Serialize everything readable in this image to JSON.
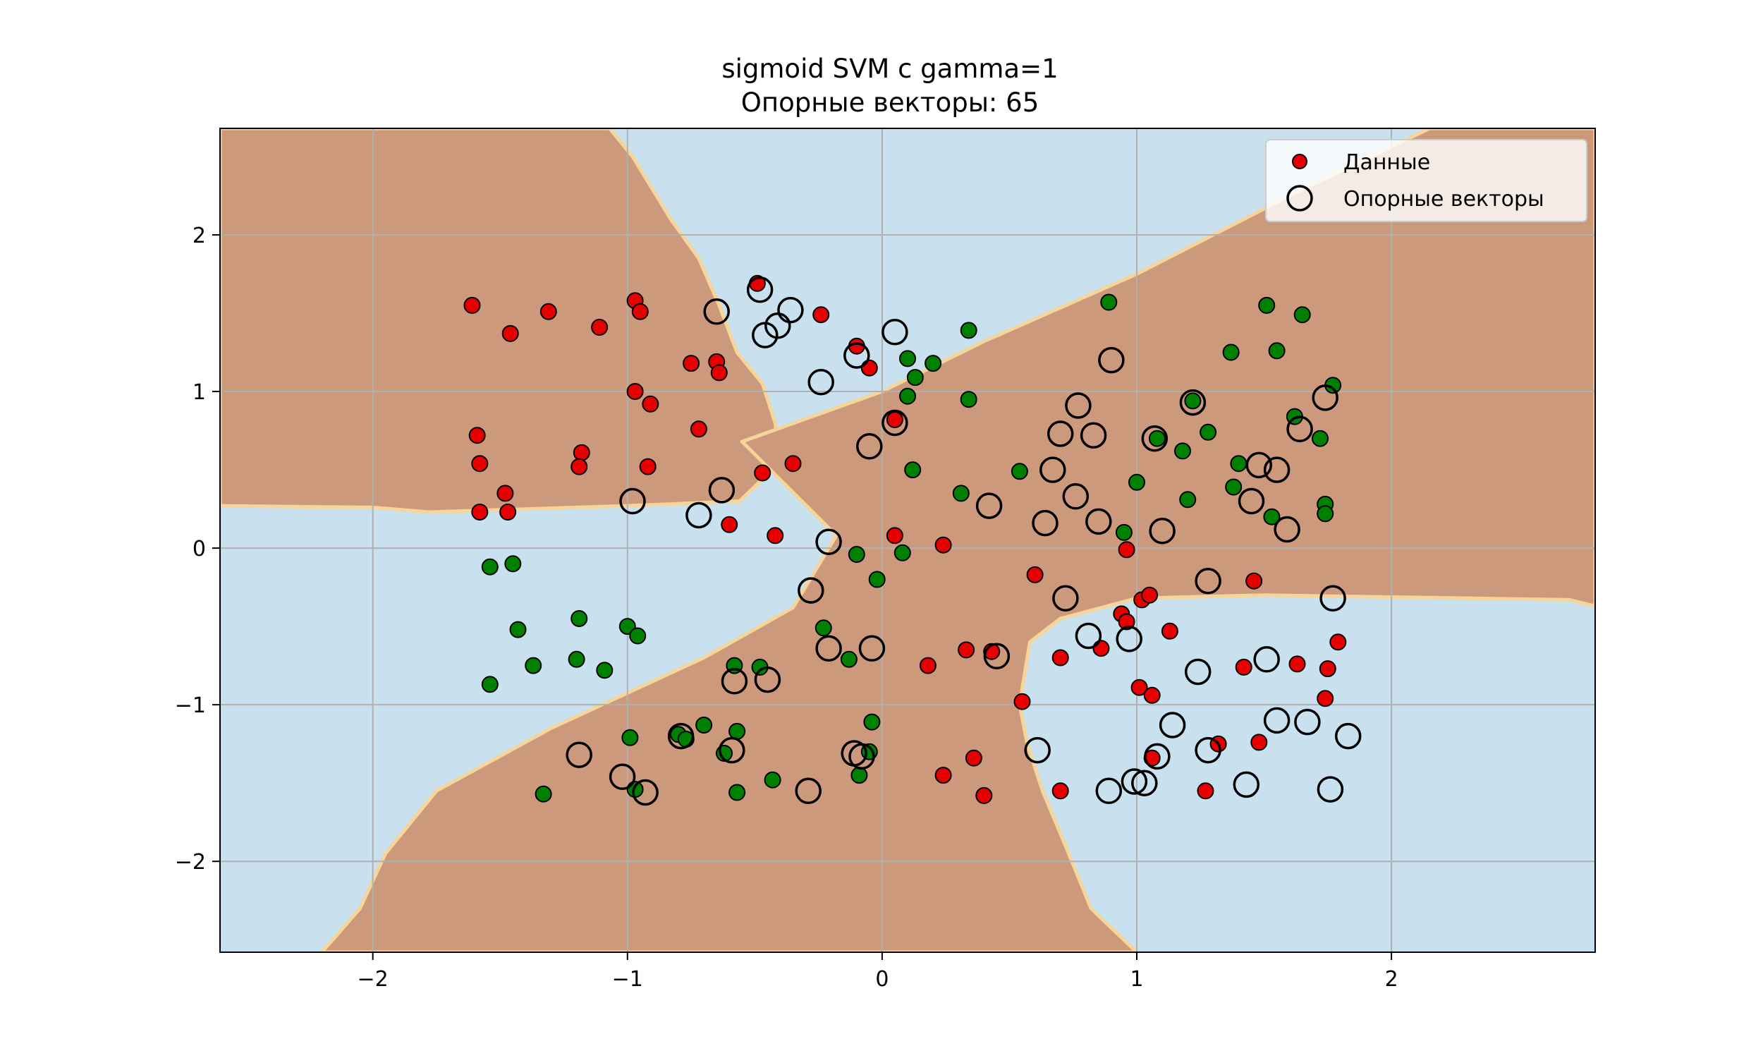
{
  "chart_data": {
    "type": "scatter",
    "title": "sigmoid SVM с gamma=1",
    "subtitle": "Опорные векторы: 65",
    "xlabel": "",
    "ylabel": "",
    "xlim": [
      -2.6,
      2.8
    ],
    "ylim": [
      -2.58,
      2.68
    ],
    "xticks": [
      -2,
      -1,
      0,
      1,
      2
    ],
    "xtick_labels": [
      "−2",
      "−1",
      "0",
      "1",
      "2"
    ],
    "yticks": [
      -2,
      -1,
      0,
      1,
      2
    ],
    "ytick_labels": [
      "−2",
      "−1",
      "0",
      "1",
      "2"
    ],
    "grid": true,
    "legend": {
      "placement": "top-right",
      "entries": [
        {
          "label": "Данные",
          "marker": "filled-circle"
        },
        {
          "label": "Опорные векторы",
          "marker": "open-circle"
        }
      ]
    },
    "decision_regions": {
      "colors": {
        "class_a": "#cd997c",
        "class_b": "#c9e0ee",
        "boundary": "#f5d59a"
      },
      "class_a_polygons": [
        [
          [
            -2.6,
            2.68
          ],
          [
            -1.07,
            2.68
          ],
          [
            -0.98,
            2.5
          ],
          [
            -0.83,
            2.1
          ],
          [
            -0.72,
            1.85
          ],
          [
            -0.64,
            1.55
          ],
          [
            -0.57,
            1.25
          ],
          [
            -0.47,
            1.05
          ],
          [
            -0.42,
            0.8
          ],
          [
            -0.4,
            0.55
          ],
          [
            -0.56,
            0.3
          ],
          [
            -1.0,
            0.27
          ],
          [
            -1.78,
            0.23
          ],
          [
            -2.0,
            0.26
          ],
          [
            -2.6,
            0.27
          ]
        ],
        [
          [
            -2.2,
            -2.58
          ],
          [
            1.0,
            -2.58
          ],
          [
            0.82,
            -2.3
          ],
          [
            0.72,
            -1.9
          ],
          [
            0.63,
            -1.55
          ],
          [
            0.57,
            -1.25
          ],
          [
            0.54,
            -1.0
          ],
          [
            0.58,
            -0.6
          ],
          [
            0.7,
            -0.45
          ],
          [
            1.0,
            -0.32
          ],
          [
            1.5,
            -0.3
          ],
          [
            2.7,
            -0.33
          ],
          [
            2.8,
            -0.37
          ],
          [
            2.8,
            2.68
          ],
          [
            2.15,
            2.68
          ],
          [
            1.6,
            2.25
          ],
          [
            1.0,
            1.75
          ],
          [
            0.4,
            1.32
          ],
          [
            0.0,
            1.0
          ],
          [
            -0.55,
            0.68
          ],
          [
            -0.18,
            0.08
          ],
          [
            -0.35,
            -0.38
          ],
          [
            -0.7,
            -0.7
          ],
          [
            -1.3,
            -1.15
          ],
          [
            -1.75,
            -1.55
          ],
          [
            -1.95,
            -1.95
          ],
          [
            -2.05,
            -2.3
          ]
        ]
      ]
    },
    "series": [
      {
        "label": "Данные",
        "marker": "filled",
        "points": [
          [
            -1.61,
            1.55,
            "#e60000"
          ],
          [
            -1.46,
            1.37,
            "#e60000"
          ],
          [
            -1.31,
            1.51,
            "#e60000"
          ],
          [
            -1.11,
            1.41,
            "#e60000"
          ],
          [
            -0.97,
            1.58,
            "#e60000"
          ],
          [
            -0.95,
            1.51,
            "#e60000"
          ],
          [
            -0.97,
            1.0,
            "#e60000"
          ],
          [
            -0.91,
            0.92,
            "#e60000"
          ],
          [
            -0.75,
            1.18,
            "#e60000"
          ],
          [
            -0.65,
            1.19,
            "#e60000"
          ],
          [
            -0.64,
            1.12,
            "#e60000"
          ],
          [
            -0.72,
            0.76,
            "#e60000"
          ],
          [
            -1.59,
            0.72,
            "#e60000"
          ],
          [
            -1.58,
            0.54,
            "#e60000"
          ],
          [
            -1.18,
            0.61,
            "#e60000"
          ],
          [
            -1.19,
            0.52,
            "#e60000"
          ],
          [
            -0.92,
            0.52,
            "#e60000"
          ],
          [
            -1.48,
            0.35,
            "#e60000"
          ],
          [
            -1.58,
            0.23,
            "#e60000"
          ],
          [
            -1.47,
            0.23,
            "#e60000"
          ],
          [
            -0.6,
            0.15,
            "#e60000"
          ],
          [
            -0.47,
            0.48,
            "#e60000"
          ],
          [
            -0.35,
            0.54,
            "#e60000"
          ],
          [
            -0.42,
            0.08,
            "#e60000"
          ],
          [
            -0.49,
            1.69,
            "#e60000"
          ],
          [
            -0.24,
            1.49,
            "#e60000"
          ],
          [
            -0.1,
            1.29,
            "#e60000"
          ],
          [
            -0.05,
            1.15,
            "#e60000"
          ],
          [
            0.05,
            0.82,
            "#e60000"
          ],
          [
            0.05,
            0.08,
            "#e60000"
          ],
          [
            0.24,
            0.02,
            "#e60000"
          ],
          [
            0.6,
            -0.17,
            "#e60000"
          ],
          [
            0.96,
            -0.01,
            "#e60000"
          ],
          [
            0.94,
            -0.42,
            "#e60000"
          ],
          [
            0.96,
            -0.47,
            "#e60000"
          ],
          [
            1.02,
            -0.33,
            "#e60000"
          ],
          [
            1.05,
            -0.3,
            "#e60000"
          ],
          [
            1.13,
            -0.53,
            "#e60000"
          ],
          [
            1.46,
            -0.21,
            "#e60000"
          ],
          [
            0.18,
            -0.75,
            "#e60000"
          ],
          [
            0.33,
            -0.65,
            "#e60000"
          ],
          [
            0.43,
            -0.66,
            "#e60000"
          ],
          [
            0.7,
            -0.7,
            "#e60000"
          ],
          [
            0.86,
            -0.64,
            "#e60000"
          ],
          [
            0.55,
            -0.98,
            "#e60000"
          ],
          [
            1.01,
            -0.89,
            "#e60000"
          ],
          [
            1.06,
            -0.94,
            "#e60000"
          ],
          [
            1.42,
            -0.76,
            "#e60000"
          ],
          [
            1.63,
            -0.74,
            "#e60000"
          ],
          [
            1.75,
            -0.77,
            "#e60000"
          ],
          [
            1.79,
            -0.6,
            "#e60000"
          ],
          [
            1.74,
            -0.96,
            "#e60000"
          ],
          [
            1.32,
            -1.25,
            "#e60000"
          ],
          [
            1.48,
            -1.24,
            "#e60000"
          ],
          [
            1.06,
            -1.34,
            "#e60000"
          ],
          [
            0.36,
            -1.34,
            "#e60000"
          ],
          [
            0.24,
            -1.45,
            "#e60000"
          ],
          [
            0.4,
            -1.58,
            "#e60000"
          ],
          [
            0.7,
            -1.55,
            "#e60000"
          ],
          [
            1.27,
            -1.55,
            "#e60000"
          ],
          [
            -1.54,
            -0.12,
            "#008000"
          ],
          [
            -1.45,
            -0.1,
            "#008000"
          ],
          [
            -1.43,
            -0.52,
            "#008000"
          ],
          [
            -1.37,
            -0.75,
            "#008000"
          ],
          [
            -1.19,
            -0.45,
            "#008000"
          ],
          [
            -1.2,
            -0.71,
            "#008000"
          ],
          [
            -1.09,
            -0.78,
            "#008000"
          ],
          [
            -1.0,
            -0.5,
            "#008000"
          ],
          [
            -0.96,
            -0.56,
            "#008000"
          ],
          [
            -1.54,
            -0.87,
            "#008000"
          ],
          [
            -0.99,
            -1.21,
            "#008000"
          ],
          [
            -0.97,
            -1.54,
            "#008000"
          ],
          [
            -1.33,
            -1.57,
            "#008000"
          ],
          [
            -0.8,
            -1.19,
            "#008000"
          ],
          [
            -0.7,
            -1.13,
            "#008000"
          ],
          [
            -0.77,
            -1.22,
            "#008000"
          ],
          [
            -0.62,
            -1.31,
            "#008000"
          ],
          [
            -0.57,
            -1.17,
            "#008000"
          ],
          [
            -0.58,
            -0.75,
            "#008000"
          ],
          [
            -0.48,
            -0.76,
            "#008000"
          ],
          [
            -0.57,
            -1.56,
            "#008000"
          ],
          [
            -0.43,
            -1.48,
            "#008000"
          ],
          [
            -0.23,
            -0.51,
            "#008000"
          ],
          [
            -0.13,
            -0.71,
            "#008000"
          ],
          [
            -0.1,
            -0.04,
            "#008000"
          ],
          [
            -0.02,
            -0.2,
            "#008000"
          ],
          [
            0.08,
            -0.03,
            "#008000"
          ],
          [
            -0.04,
            -1.11,
            "#008000"
          ],
          [
            -0.05,
            -1.3,
            "#008000"
          ],
          [
            -0.09,
            -1.45,
            "#008000"
          ],
          [
            0.1,
            1.21,
            "#008000"
          ],
          [
            0.13,
            1.09,
            "#008000"
          ],
          [
            0.2,
            1.18,
            "#008000"
          ],
          [
            0.1,
            0.97,
            "#008000"
          ],
          [
            0.12,
            0.5,
            "#008000"
          ],
          [
            0.34,
            1.39,
            "#008000"
          ],
          [
            0.34,
            0.95,
            "#008000"
          ],
          [
            0.31,
            0.35,
            "#008000"
          ],
          [
            0.54,
            0.49,
            "#008000"
          ],
          [
            0.89,
            1.57,
            "#008000"
          ],
          [
            1.0,
            0.42,
            "#008000"
          ],
          [
            0.95,
            0.1,
            "#008000"
          ],
          [
            1.08,
            0.7,
            "#008000"
          ],
          [
            1.18,
            0.62,
            "#008000"
          ],
          [
            1.2,
            0.31,
            "#008000"
          ],
          [
            1.22,
            0.94,
            "#008000"
          ],
          [
            1.28,
            0.74,
            "#008000"
          ],
          [
            1.37,
            1.25,
            "#008000"
          ],
          [
            1.4,
            0.54,
            "#008000"
          ],
          [
            1.38,
            0.39,
            "#008000"
          ],
          [
            1.51,
            1.55,
            "#008000"
          ],
          [
            1.55,
            1.26,
            "#008000"
          ],
          [
            1.53,
            0.2,
            "#008000"
          ],
          [
            1.65,
            1.49,
            "#008000"
          ],
          [
            1.62,
            0.84,
            "#008000"
          ],
          [
            1.72,
            0.7,
            "#008000"
          ],
          [
            1.77,
            1.04,
            "#008000"
          ],
          [
            1.74,
            0.28,
            "#008000"
          ],
          [
            1.74,
            0.22,
            "#008000"
          ]
        ]
      },
      {
        "label": "Опорные векторы",
        "marker": "open",
        "points": [
          [
            -0.65,
            1.51
          ],
          [
            -0.48,
            1.65
          ],
          [
            -0.46,
            1.36
          ],
          [
            -0.41,
            1.42
          ],
          [
            -0.36,
            1.52
          ],
          [
            -0.1,
            1.23
          ],
          [
            -0.24,
            1.06
          ],
          [
            0.05,
            1.38
          ],
          [
            -0.05,
            0.65
          ],
          [
            0.05,
            0.8
          ],
          [
            -0.98,
            0.3
          ],
          [
            -0.72,
            0.21
          ],
          [
            -0.63,
            0.37
          ],
          [
            -0.21,
            0.04
          ],
          [
            -0.28,
            -0.27
          ],
          [
            -0.21,
            -0.64
          ],
          [
            -0.04,
            -0.64
          ],
          [
            -0.58,
            -0.85
          ],
          [
            -0.45,
            -0.84
          ],
          [
            -1.19,
            -1.32
          ],
          [
            -1.02,
            -1.46
          ],
          [
            -0.93,
            -1.56
          ],
          [
            -0.79,
            -1.2
          ],
          [
            -0.59,
            -1.29
          ],
          [
            -0.29,
            -1.55
          ],
          [
            -0.11,
            -1.31
          ],
          [
            -0.08,
            -1.33
          ],
          [
            0.9,
            1.2
          ],
          [
            0.77,
            0.91
          ],
          [
            0.7,
            0.73
          ],
          [
            0.83,
            0.72
          ],
          [
            0.67,
            0.5
          ],
          [
            0.76,
            0.33
          ],
          [
            0.42,
            0.27
          ],
          [
            0.64,
            0.16
          ],
          [
            0.85,
            0.17
          ],
          [
            1.22,
            0.93
          ],
          [
            1.07,
            0.7
          ],
          [
            1.1,
            0.11
          ],
          [
            1.48,
            0.53
          ],
          [
            1.55,
            0.5
          ],
          [
            1.45,
            0.3
          ],
          [
            1.59,
            0.12
          ],
          [
            1.74,
            0.96
          ],
          [
            1.64,
            0.76
          ],
          [
            0.72,
            -0.32
          ],
          [
            1.28,
            -0.21
          ],
          [
            1.77,
            -0.32
          ],
          [
            0.81,
            -0.56
          ],
          [
            0.97,
            -0.58
          ],
          [
            0.45,
            -0.69
          ],
          [
            1.24,
            -0.79
          ],
          [
            1.51,
            -0.71
          ],
          [
            1.55,
            -1.1
          ],
          [
            1.67,
            -1.11
          ],
          [
            1.83,
            -1.2
          ],
          [
            1.14,
            -1.13
          ],
          [
            1.28,
            -1.29
          ],
          [
            1.08,
            -1.33
          ],
          [
            0.61,
            -1.29
          ],
          [
            0.99,
            -1.49
          ],
          [
            1.03,
            -1.5
          ],
          [
            0.89,
            -1.55
          ],
          [
            1.43,
            -1.51
          ],
          [
            1.76,
            -1.54
          ]
        ]
      }
    ]
  }
}
